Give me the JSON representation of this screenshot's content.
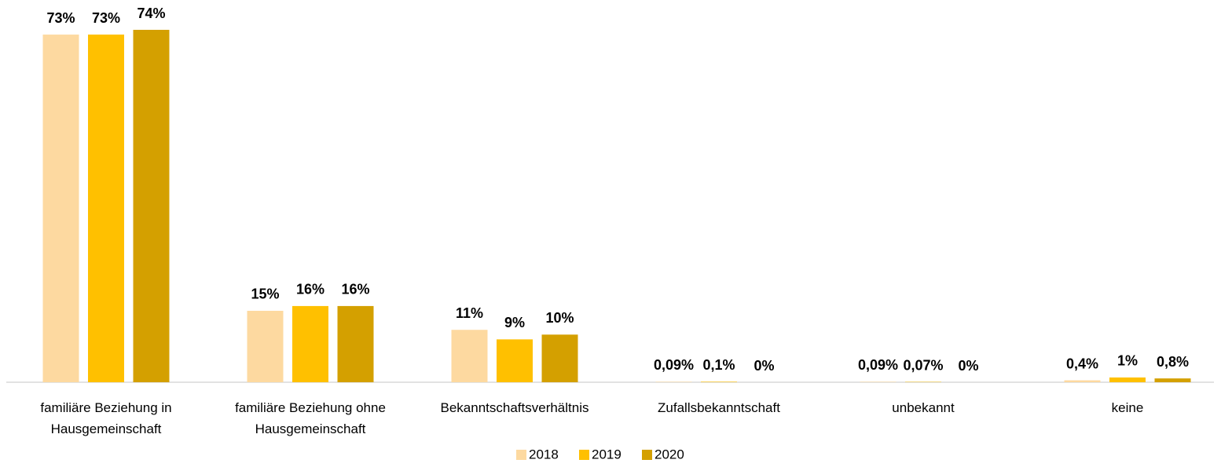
{
  "chart_data": {
    "type": "bar",
    "categories": [
      "familiäre Beziehung in Hausgemeinschaft",
      "familiäre Beziehung ohne Hausgemeinschaft",
      "Bekanntschaftsverhältnis",
      "Zufallsbekanntschaft",
      "unbekannt",
      "keine"
    ],
    "series": [
      {
        "name": "2018",
        "color": "#fdd9a0",
        "values": [
          73,
          15,
          11,
          0.09,
          0.09,
          0.4
        ],
        "value_labels": [
          "73%",
          "15%",
          "11%",
          "0,09%",
          "0,09%",
          "0,4%"
        ]
      },
      {
        "name": "2019",
        "color": "#ffc000",
        "values": [
          73,
          16,
          9,
          0.1,
          0.07,
          1
        ],
        "value_labels": [
          "73%",
          "16%",
          "9%",
          "0,1%",
          "0,07%",
          "1%"
        ]
      },
      {
        "name": "2020",
        "color": "#d4a000",
        "values": [
          74,
          16,
          10,
          0,
          0,
          0.8
        ],
        "value_labels": [
          "74%",
          "16%",
          "10%",
          "0%",
          "0%",
          "0,8%"
        ]
      }
    ],
    "legend": "bottom"
  }
}
